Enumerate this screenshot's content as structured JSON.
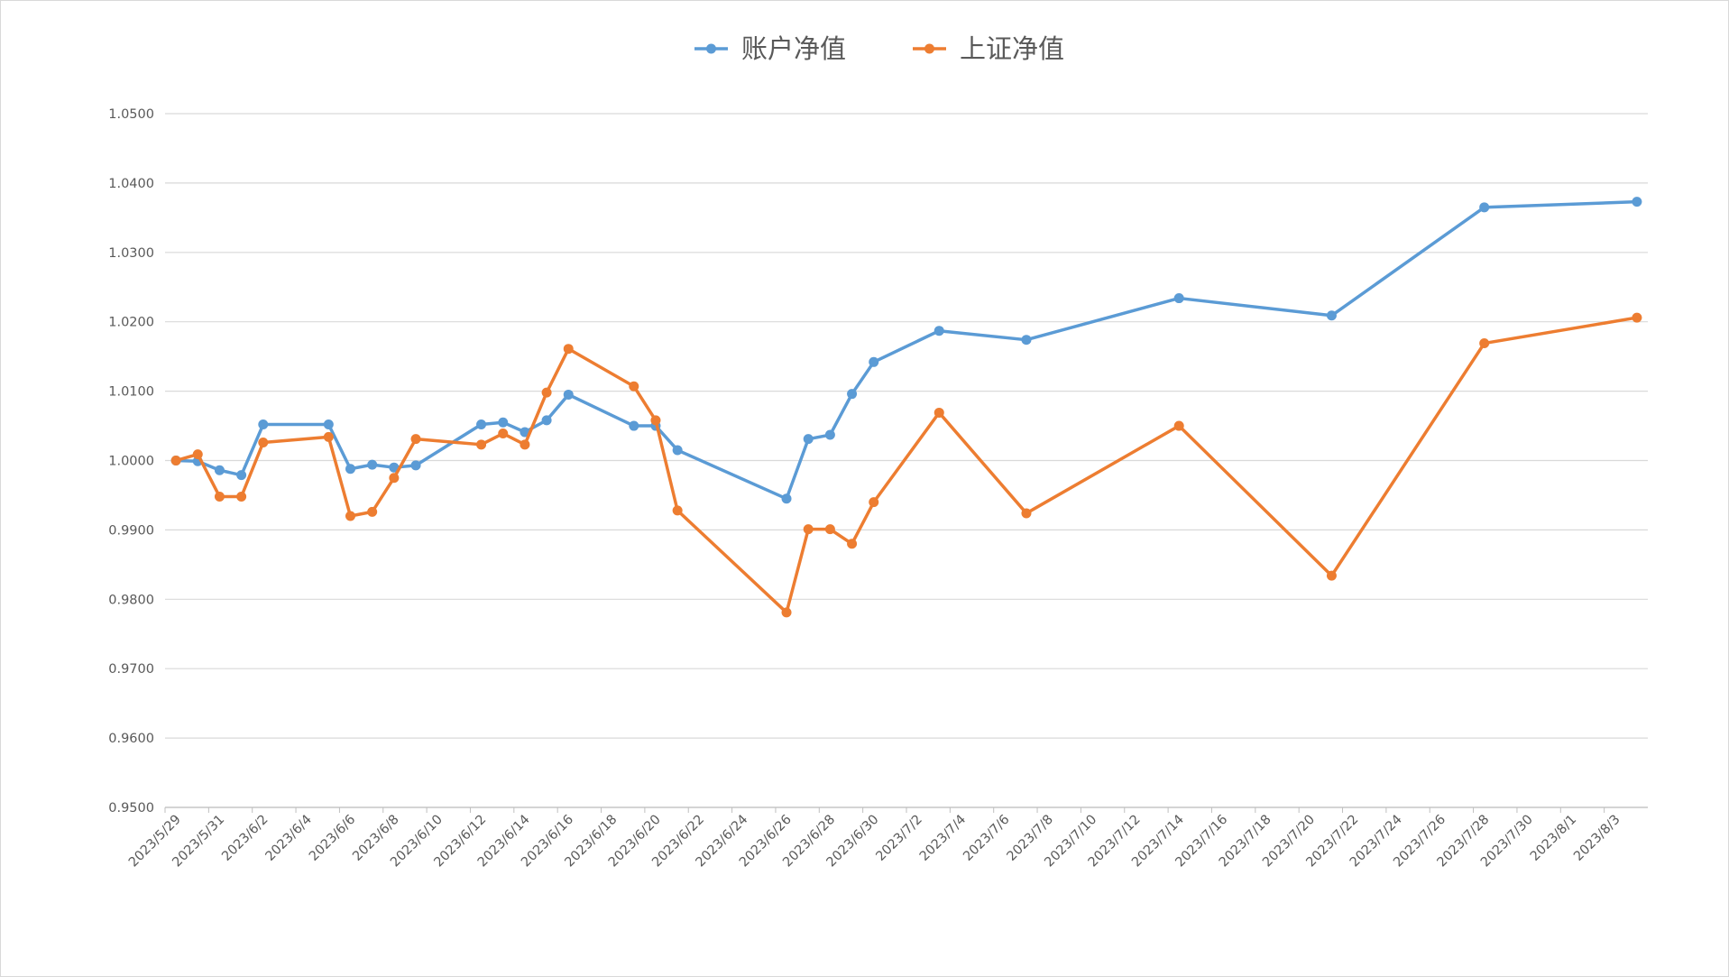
{
  "chart_data": {
    "type": "line",
    "x": [
      "2023/5/29",
      "2023/5/30",
      "2023/5/31",
      "2023/6/1",
      "2023/6/2",
      "2023/6/5",
      "2023/6/6",
      "2023/6/7",
      "2023/6/8",
      "2023/6/9",
      "2023/6/12",
      "2023/6/13",
      "2023/6/14",
      "2023/6/15",
      "2023/6/16",
      "2023/6/19",
      "2023/6/20",
      "2023/6/21",
      "2023/6/26",
      "2023/6/27",
      "2023/6/28",
      "2023/6/29",
      "2023/6/30",
      "2023/7/3",
      "2023/7/7",
      "2023/7/14",
      "2023/7/21",
      "2023/7/28",
      "2023/8/4"
    ],
    "series": [
      {
        "name": "账户净值",
        "color": "#5b9bd5",
        "values": [
          1.0,
          0.9999,
          0.9986,
          0.9979,
          1.0052,
          1.0052,
          0.9988,
          0.9994,
          0.999,
          0.9993,
          1.0052,
          1.0055,
          1.0041,
          1.0058,
          1.0095,
          1.005,
          1.005,
          1.0015,
          0.9945,
          1.0031,
          1.0037,
          1.0096,
          1.0142,
          1.0187,
          1.0174,
          1.0234,
          1.0209,
          1.0365,
          1.0373
        ]
      },
      {
        "name": "上证净值",
        "color": "#ed7d31",
        "values": [
          1.0,
          1.0009,
          0.9948,
          0.9948,
          1.0026,
          1.0034,
          0.992,
          0.9926,
          0.9975,
          1.0031,
          1.0023,
          1.0039,
          1.0023,
          1.0098,
          1.0161,
          1.0107,
          1.0058,
          0.9928,
          0.9781,
          0.9901,
          0.9901,
          0.988,
          0.994,
          1.0069,
          0.9924,
          1.005,
          0.9834,
          1.0169,
          1.0206
        ]
      }
    ],
    "ylim": [
      0.95,
      1.05
    ],
    "yticks": [
      {
        "value": 0.95,
        "label": "0.9500"
      },
      {
        "value": 0.96,
        "label": "0.9600"
      },
      {
        "value": 0.97,
        "label": "0.9700"
      },
      {
        "value": 0.98,
        "label": "0.9800"
      },
      {
        "value": 0.99,
        "label": "0.9900"
      },
      {
        "value": 1.0,
        "label": "1.0000"
      },
      {
        "value": 1.01,
        "label": "1.0100"
      },
      {
        "value": 1.02,
        "label": "1.0200"
      },
      {
        "value": 1.03,
        "label": "1.0300"
      },
      {
        "value": 1.04,
        "label": "1.0400"
      },
      {
        "value": 1.05,
        "label": "1.0500"
      }
    ],
    "xticks": [
      "2023/5/29",
      "2023/5/31",
      "2023/6/2",
      "2023/6/4",
      "2023/6/6",
      "2023/6/8",
      "2023/6/10",
      "2023/6/12",
      "2023/6/14",
      "2023/6/16",
      "2023/6/18",
      "2023/6/20",
      "2023/6/22",
      "2023/6/24",
      "2023/6/26",
      "2023/6/28",
      "2023/6/30",
      "2023/7/2",
      "2023/7/4",
      "2023/7/6",
      "2023/7/8",
      "2023/7/10",
      "2023/7/12",
      "2023/7/14",
      "2023/7/16",
      "2023/7/18",
      "2023/7/20",
      "2023/7/22",
      "2023/7/24",
      "2023/7/26",
      "2023/7/28",
      "2023/7/30",
      "2023/8/1",
      "2023/8/3"
    ],
    "grid": true,
    "legend": "top"
  }
}
